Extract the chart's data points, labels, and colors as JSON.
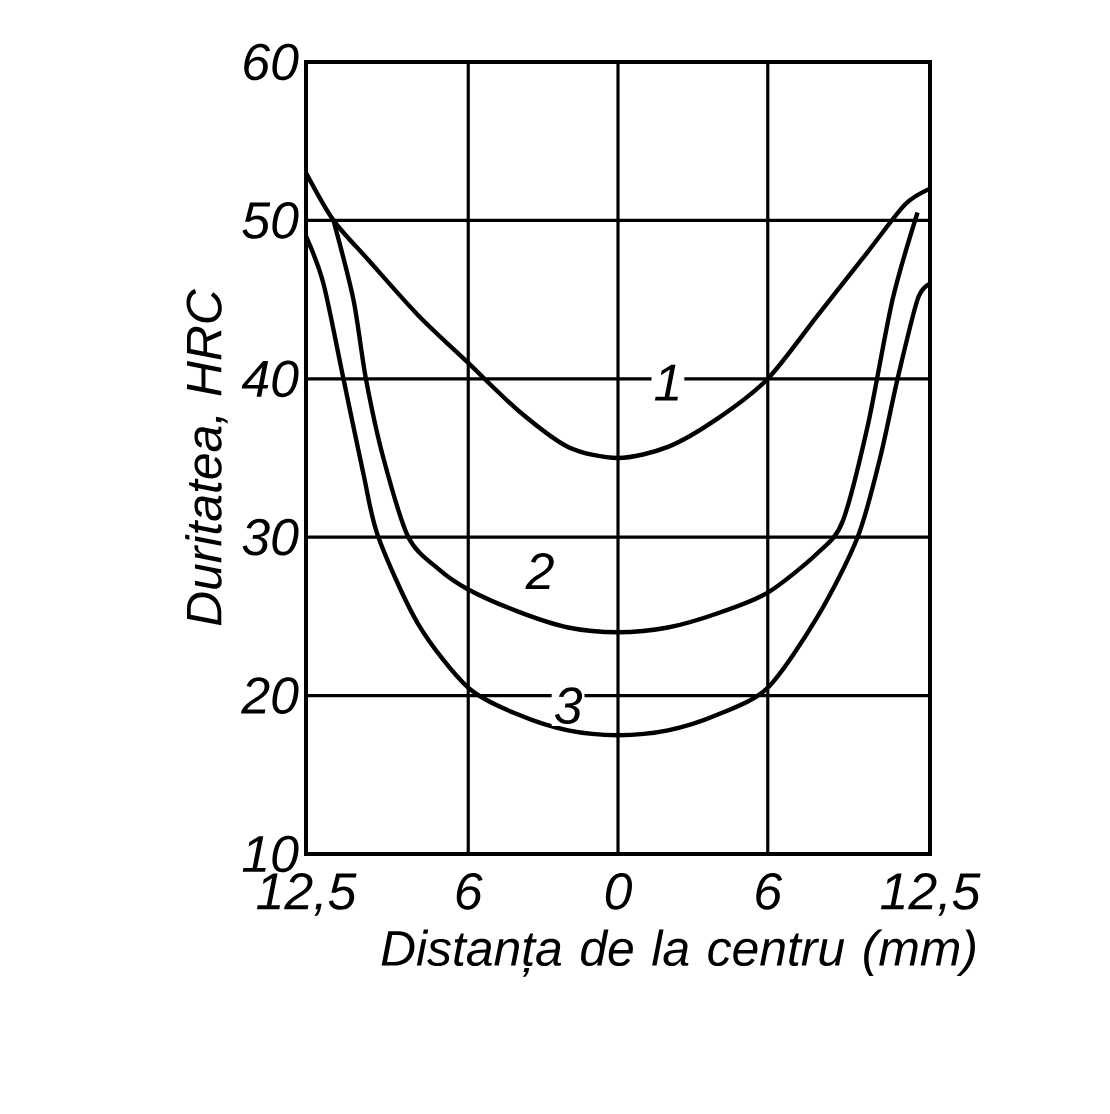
{
  "chart_data": {
    "type": "line",
    "xlabel": "Distanța de la centru (mm)",
    "ylabel": "Duritatea, HRC",
    "x": [
      -12.5,
      -11.4,
      -10,
      -8,
      -6,
      -4,
      -2,
      0,
      2,
      4,
      6,
      8,
      10,
      11.5,
      12.5
    ],
    "series": [
      {
        "name": "1",
        "color": "#000000",
        "values": [
          53,
          50,
          47.5,
          44,
          41,
          38,
          35.7,
          35,
          35.7,
          37.5,
          40,
          44,
          48,
          51,
          52
        ]
      },
      {
        "name": "2",
        "color": "#000000",
        "x": [
          -11.4,
          -10.6,
          -10.1,
          -9.4,
          -8.4,
          -7.2,
          -6,
          -4,
          -2,
          0,
          2,
          4,
          6,
          8,
          9,
          10,
          11,
          12
        ],
        "values": [
          50,
          45,
          40,
          35,
          30,
          28,
          26.7,
          25.3,
          24.3,
          24,
          24.3,
          25.2,
          26.5,
          29,
          31,
          37,
          45,
          50.5
        ]
      },
      {
        "name": "3",
        "color": "#000000",
        "x": [
          -12.5,
          -11.8,
          -11,
          -10.2,
          -9.6,
          -8,
          -6,
          -4,
          -2,
          0,
          2,
          4,
          6,
          8,
          9.6,
          10.5,
          11.2,
          12,
          12.5
        ],
        "values": [
          49,
          46,
          40,
          34,
          30,
          24.5,
          20.5,
          18.8,
          17.8,
          17.5,
          17.8,
          18.8,
          20.5,
          25,
          30,
          35,
          40,
          45,
          46
        ]
      }
    ],
    "xlim": [
      -12.5,
      12.5
    ],
    "ylim": [
      10,
      60
    ],
    "xticks": [
      {
        "value": -12.5,
        "label": "12,5"
      },
      {
        "value": -6,
        "label": "6"
      },
      0,
      6,
      {
        "value": 12.5,
        "label": "12,5"
      }
    ],
    "yticks": [
      10,
      20,
      30,
      40,
      50,
      60
    ],
    "grid": true,
    "marker": "none",
    "line_style": "solid",
    "legend": false
  }
}
